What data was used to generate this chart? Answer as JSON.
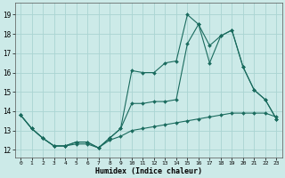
{
  "xlabel": "Humidex (Indice chaleur)",
  "bg_color": "#cceae8",
  "grid_color": "#aad4d2",
  "line_color": "#1a6b5e",
  "x_ticks": [
    0,
    1,
    2,
    3,
    4,
    5,
    6,
    7,
    8,
    9,
    10,
    11,
    12,
    13,
    14,
    15,
    16,
    17,
    18,
    19,
    20,
    21,
    22,
    23
  ],
  "y_ticks": [
    12,
    13,
    14,
    15,
    16,
    17,
    18,
    19
  ],
  "ylim": [
    11.6,
    19.6
  ],
  "xlim": [
    -0.5,
    23.5
  ],
  "line1_y": [
    13.8,
    13.1,
    12.6,
    12.2,
    12.2,
    12.4,
    12.4,
    12.1,
    12.6,
    13.1,
    14.4,
    14.4,
    14.5,
    14.5,
    14.6,
    17.5,
    18.5,
    16.5,
    17.9,
    18.2,
    16.3,
    15.1,
    14.6,
    13.6
  ],
  "line2_y": [
    13.8,
    13.1,
    12.6,
    12.2,
    12.2,
    12.4,
    12.4,
    12.1,
    12.6,
    13.1,
    16.1,
    16.0,
    16.0,
    16.5,
    16.6,
    19.0,
    18.5,
    17.4,
    17.9,
    18.2,
    16.3,
    15.1,
    14.6,
    13.6
  ],
  "line3_y": [
    13.8,
    13.1,
    12.6,
    12.2,
    12.2,
    12.3,
    12.3,
    12.1,
    12.5,
    12.7,
    13.0,
    13.1,
    13.2,
    13.3,
    13.4,
    13.5,
    13.6,
    13.7,
    13.8,
    13.9,
    13.9,
    13.9,
    13.9,
    13.7
  ]
}
